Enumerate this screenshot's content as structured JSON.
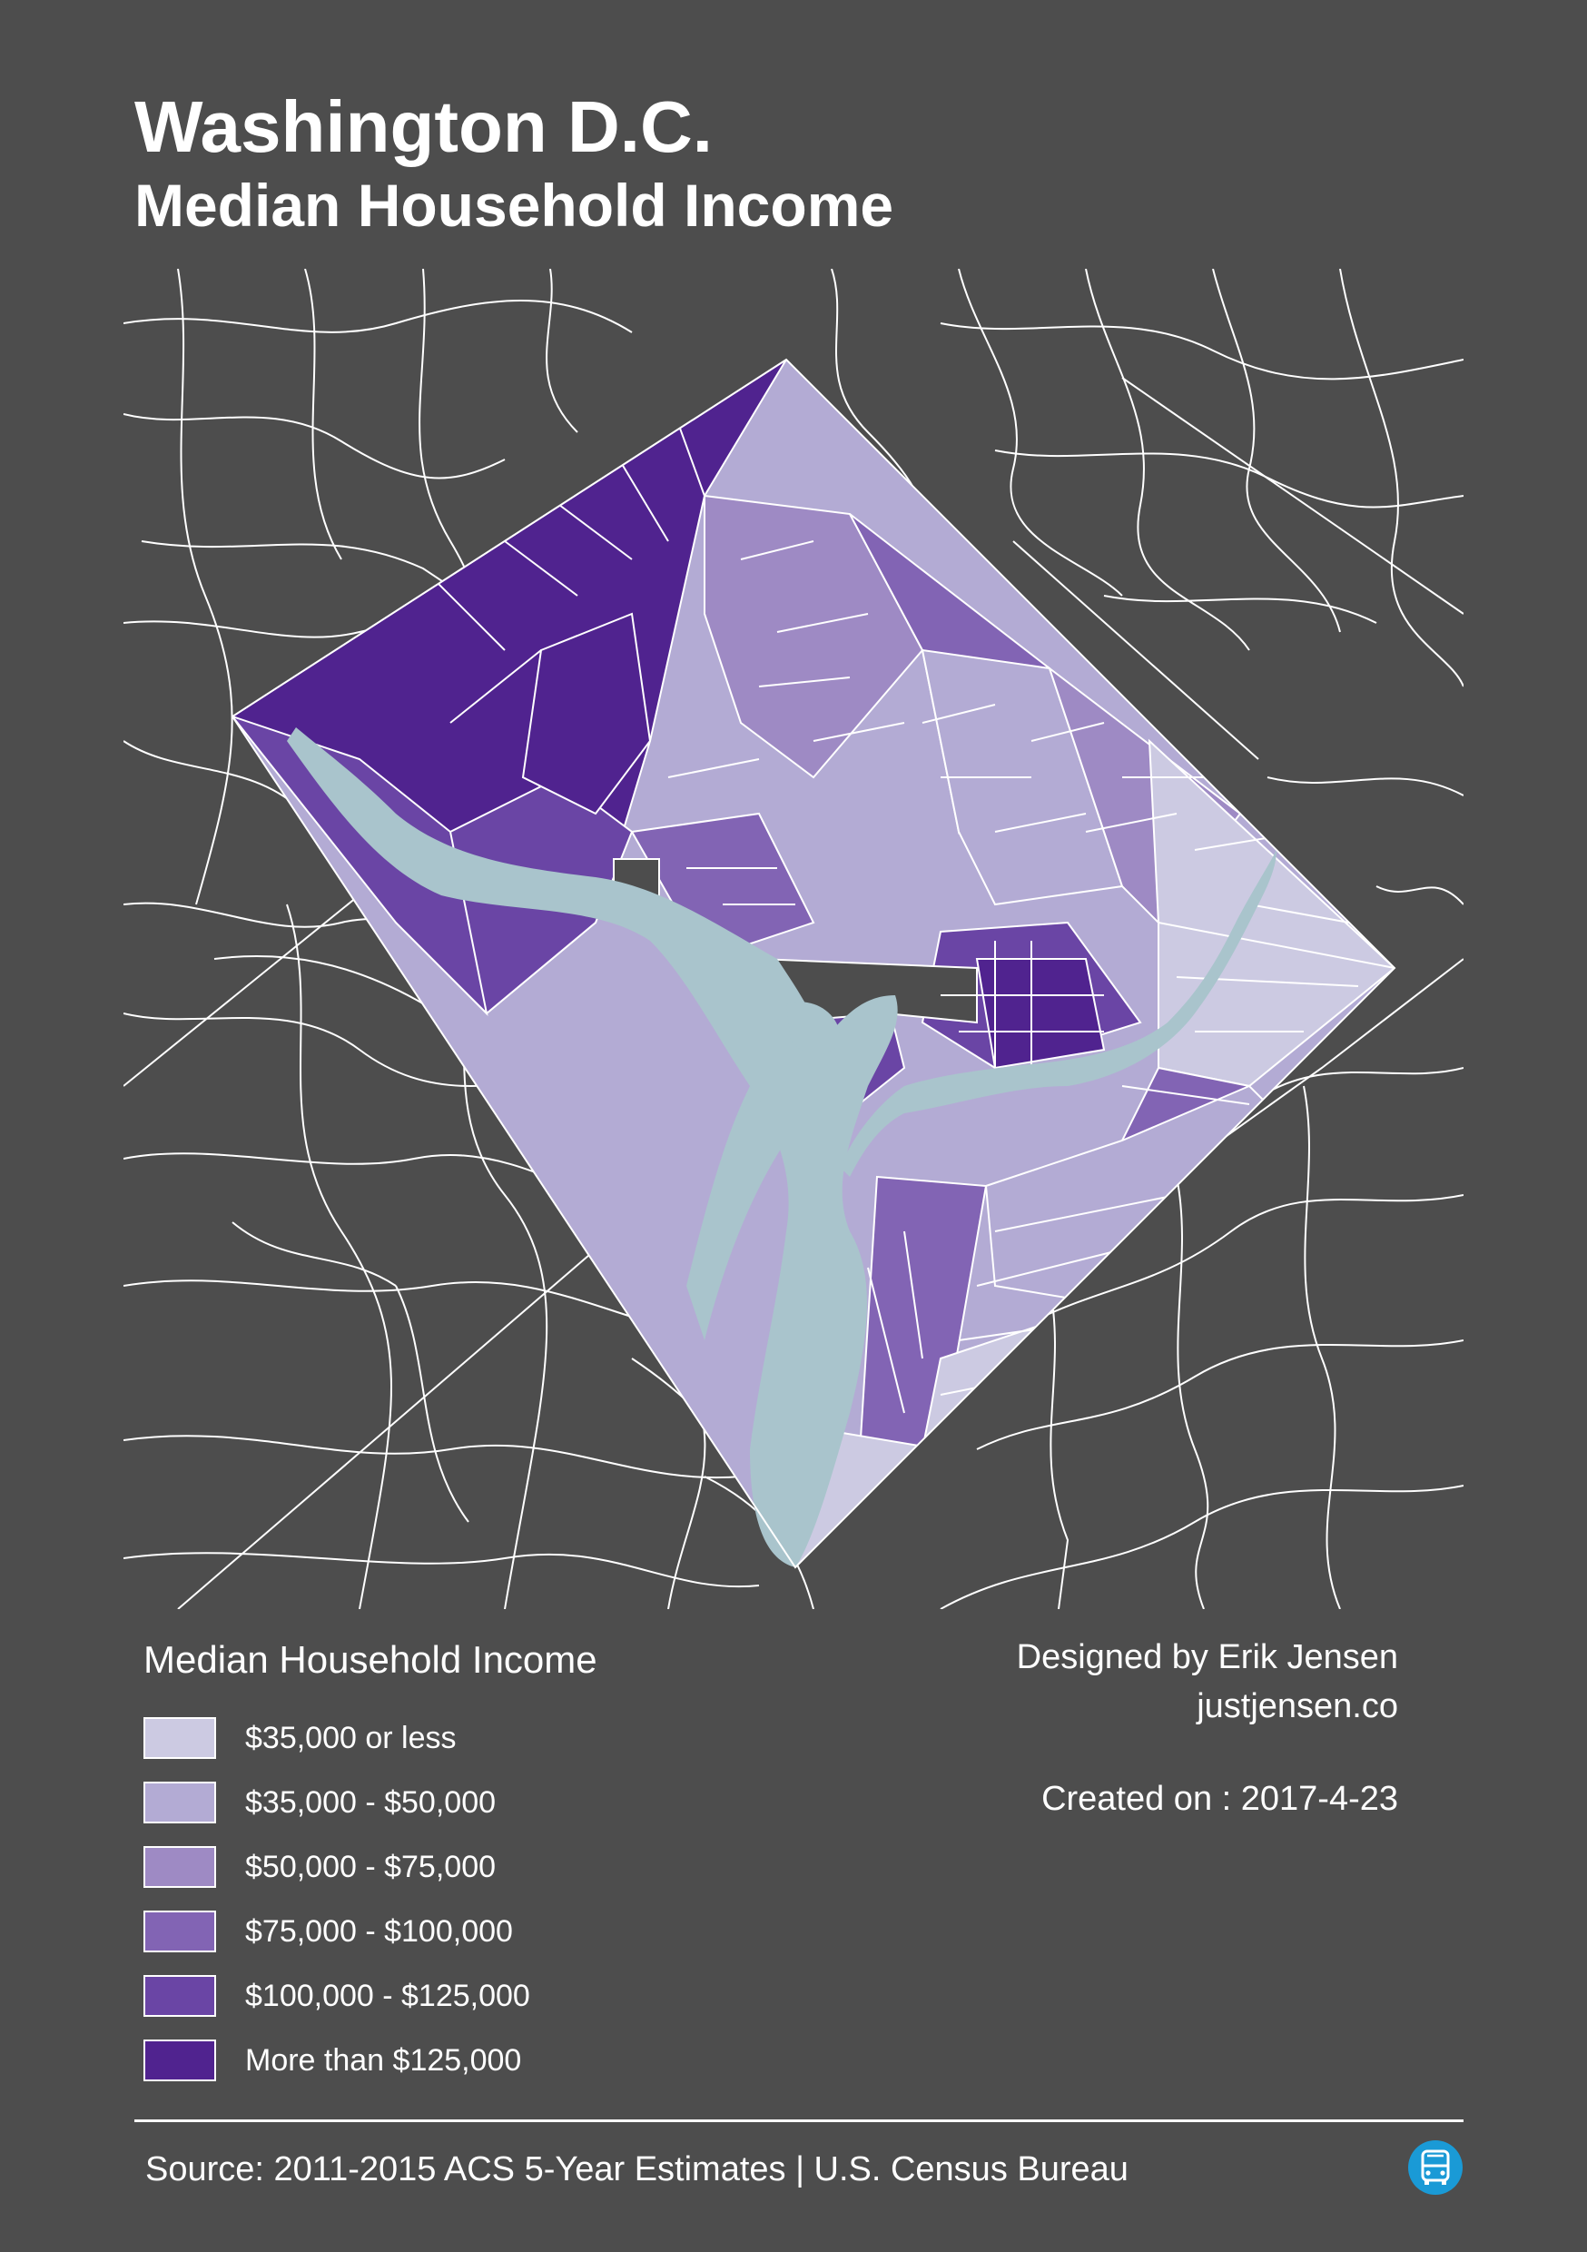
{
  "header": {
    "title": "Washington D.C.",
    "subtitle": "Median Household Income"
  },
  "colors": {
    "background": "#4d4d4d",
    "road_lines": "#ffffff",
    "water": "#a9c4cc",
    "scale": [
      "#cccae2",
      "#b3abd4",
      "#9e8ac4",
      "#8264b4",
      "#6a45a5",
      "#50238f"
    ],
    "bus_logo": "#1a9ad6"
  },
  "legend": {
    "title": "Median Household Income",
    "items": [
      {
        "label": "$35,000 or less",
        "color": "#cccae2"
      },
      {
        "label": "$35,000 - $50,000",
        "color": "#b3abd4"
      },
      {
        "label": "$50,000 - $75,000",
        "color": "#9e8ac4"
      },
      {
        "label": "$75,000 - $100,000",
        "color": "#8264b4"
      },
      {
        "label": "$100,000 - $125,000",
        "color": "#6a45a5"
      },
      {
        "label": "More than $125,000",
        "color": "#50238f"
      }
    ]
  },
  "credits": {
    "designer": "Designed by Erik Jensen",
    "website": "justjensen.co",
    "created": "Created on : 2017-4-23"
  },
  "footer": {
    "source": "Source: 2011-2015 ACS 5-Year Estimates | U.S. Census Bureau",
    "logo_icon": "bus-icon"
  }
}
